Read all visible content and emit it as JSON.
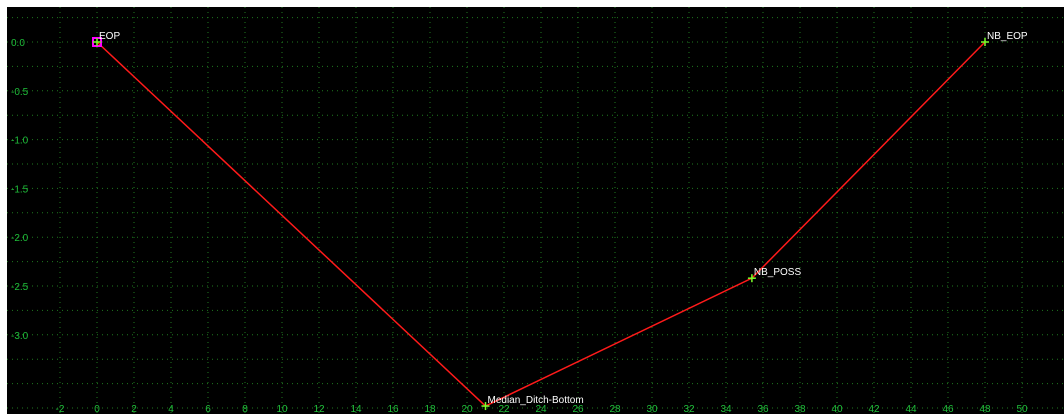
{
  "window": {
    "title": ""
  },
  "colors": {
    "background": "#000000",
    "grid": "#1f7a1f",
    "axis_labels": "#1fbf3a",
    "profile_line": "#ff1a1a",
    "point_marker": "#7cff2a",
    "selected_point_marker": "#ff00ff",
    "point_label": "#ffffff"
  },
  "chart_data": {
    "type": "line",
    "title": "",
    "xlabel": "",
    "ylabel": "",
    "grid": true,
    "xlim": [
      -4,
      51
    ],
    "ylim": [
      -3.82,
      0.32
    ],
    "x_ticks": [
      -2,
      0,
      2,
      4,
      6,
      8,
      10,
      12,
      14,
      16,
      18,
      20,
      22,
      24,
      26,
      28,
      30,
      32,
      34,
      36,
      38,
      40,
      42,
      44,
      46,
      48,
      50
    ],
    "x_tick_labels": [
      "-2",
      "0",
      "2",
      "4",
      "6",
      "8",
      "10",
      "12",
      "14",
      "16",
      "18",
      "20",
      "22",
      "24",
      "26",
      "28",
      "30",
      "32",
      "34",
      "36",
      "38",
      "40",
      "42",
      "44",
      "46",
      "48",
      "50"
    ],
    "y_ticks": [
      0.0,
      -0.5,
      -1.0,
      -1.5,
      -2.0,
      -2.5,
      -3.0
    ],
    "y_tick_labels": [
      "0.0",
      "-0.5",
      "-1.0",
      "-1.5",
      "-2.0",
      "-2.5",
      "-3.0"
    ],
    "series": [
      {
        "x": [
          0,
          21,
          35.4,
          48
        ],
        "y": [
          0.0,
          -3.73,
          -2.42,
          0.0
        ]
      }
    ],
    "points": [
      {
        "label": "EOP",
        "x": 0,
        "y": 0.0,
        "selected": true
      },
      {
        "label": "Median_Ditch-Bottom",
        "x": 21,
        "y": -3.73,
        "selected": false
      },
      {
        "label": "NB_POSS",
        "x": 35.4,
        "y": -2.42,
        "selected": false
      },
      {
        "label": "NB_EOP",
        "x": 48,
        "y": 0.0,
        "selected": false
      }
    ]
  }
}
